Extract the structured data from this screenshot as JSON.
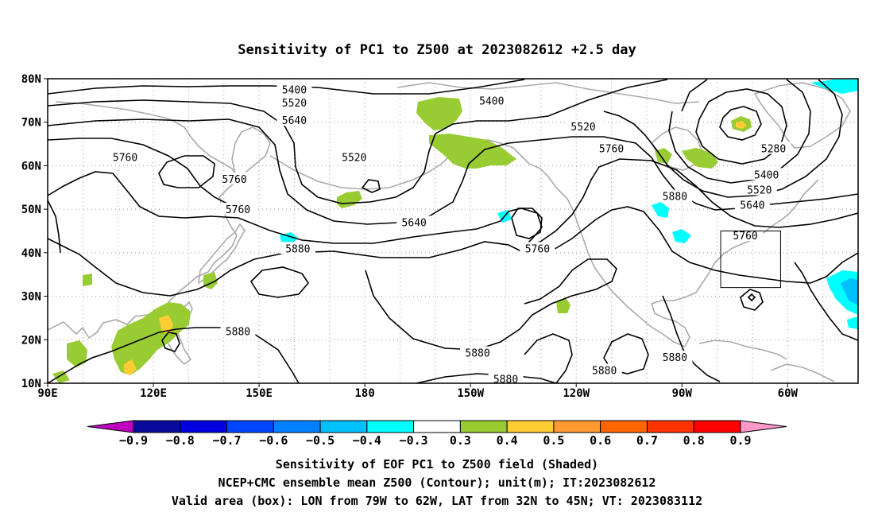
{
  "title": "Sensitivity of PC1 to Z500 at 2023082612 +2.5 day",
  "map": {
    "lon_labels": [
      "90E",
      "120E",
      "150E",
      "180",
      "150W",
      "120W",
      "90W",
      "60W"
    ],
    "lat_labels": [
      "80N",
      "70N",
      "60N",
      "50N",
      "40N",
      "30N",
      "20N",
      "10N"
    ],
    "colors": {
      "contour": "#000000",
      "coastline": "#aaaaaa",
      "grid": "#999999",
      "box": "#000000"
    }
  },
  "contour_labels": [
    {
      "text": "5400",
      "lon": 160,
      "lat": 77.5
    },
    {
      "text": "5520",
      "lon": 160,
      "lat": 74.5
    },
    {
      "text": "5640",
      "lon": 160,
      "lat": 70.5
    },
    {
      "text": "5760",
      "lon": 112,
      "lat": 62
    },
    {
      "text": "5760",
      "lon": 143,
      "lat": 57
    },
    {
      "text": "5760",
      "lon": 144,
      "lat": 50
    },
    {
      "text": "5880",
      "lon": 161,
      "lat": 41
    },
    {
      "text": "5880",
      "lon": 144,
      "lat": 22
    },
    {
      "text": "5400",
      "lon": 216,
      "lat": 75
    },
    {
      "text": "5520",
      "lon": 177,
      "lat": 62
    },
    {
      "text": "5640",
      "lon": 194,
      "lat": 47
    },
    {
      "text": "5520",
      "lon": 242,
      "lat": 69
    },
    {
      "text": "5760",
      "lon": 250,
      "lat": 64
    },
    {
      "text": "5760",
      "lon": 229,
      "lat": 41
    },
    {
      "text": "5880",
      "lon": 268,
      "lat": 53
    },
    {
      "text": "5880",
      "lon": 212,
      "lat": 17
    },
    {
      "text": "5880",
      "lon": 220,
      "lat": 11
    },
    {
      "text": "5880",
      "lon": 248,
      "lat": 13
    },
    {
      "text": "5880",
      "lon": 268,
      "lat": 16
    },
    {
      "text": "5280",
      "lon": 296,
      "lat": 64
    },
    {
      "text": "5400",
      "lon": 294,
      "lat": 58
    },
    {
      "text": "5520",
      "lon": 292,
      "lat": 54.5
    },
    {
      "text": "5640",
      "lon": 290,
      "lat": 51
    },
    {
      "text": "5760",
      "lon": 288,
      "lat": 44
    }
  ],
  "valid_box": {
    "lon_min": 281,
    "lon_max": 298,
    "lat_min": 32,
    "lat_max": 45
  },
  "colorbar": {
    "labels": [
      "-0.9",
      "-0.8",
      "-0.7",
      "-0.6",
      "-0.5",
      "-0.4",
      "-0.3",
      "0.3",
      "0.4",
      "0.5",
      "0.6",
      "0.7",
      "0.8",
      "0.9"
    ],
    "colors": [
      "#c000c0",
      "#0a0a9a",
      "#0000e0",
      "#0045ff",
      "#0080ff",
      "#00c0ff",
      "#00ffff",
      "#ffffff",
      "#99cc33",
      "#ffcc33",
      "#ff9933",
      "#ff6600",
      "#ff3300",
      "#ff0000",
      "#ff99cc"
    ]
  },
  "caption": {
    "line1": "Sensitivity of EOF PC1 to Z500 field (Shaded)",
    "line2": "NCEP+CMC ensemble mean Z500 (Contour); unit(m); IT:2023082612",
    "line3": "Valid area (box): LON from 79W to 62W, LAT from 32N to 45N; VT: 2023083112"
  }
}
